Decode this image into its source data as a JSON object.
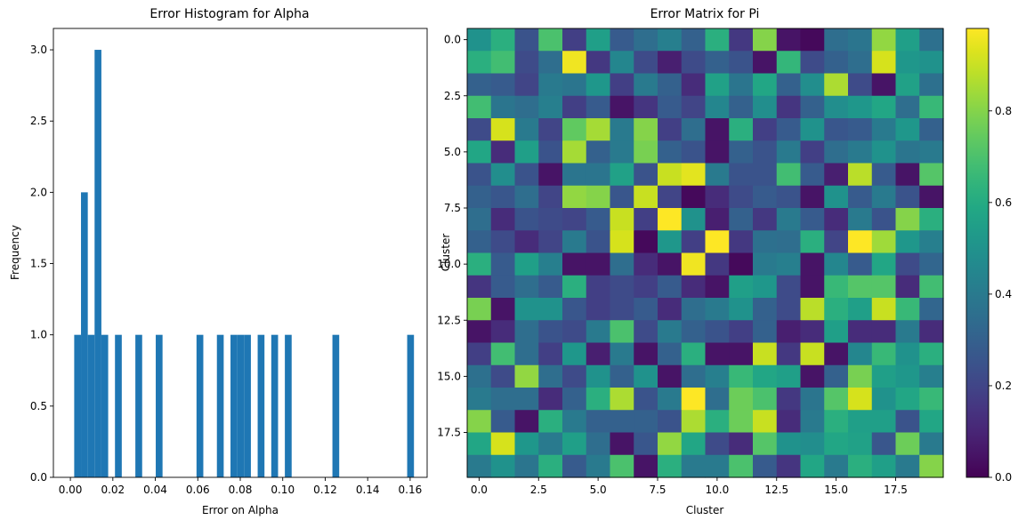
{
  "chart_data": [
    {
      "type": "bar",
      "title": "Error Histogram for Alpha",
      "xlabel": "Error on Alpha",
      "ylabel": "Frequency",
      "xlim": [
        -0.008,
        0.168
      ],
      "ylim": [
        0,
        3.15
      ],
      "xticks": [
        0.0,
        0.02,
        0.04,
        0.06,
        0.08,
        0.1,
        0.12,
        0.14,
        0.16
      ],
      "xtick_labels": [
        "0.00",
        "0.02",
        "0.04",
        "0.06",
        "0.08",
        "0.10",
        "0.12",
        "0.14",
        "0.16"
      ],
      "yticks": [
        0.0,
        0.5,
        1.0,
        1.5,
        2.0,
        2.5,
        3.0
      ],
      "ytick_labels": [
        "0.0",
        "0.5",
        "1.0",
        "1.5",
        "2.0",
        "2.5",
        "3.0"
      ],
      "bin_width": 0.0032,
      "bars": [
        {
          "x": 0.0034,
          "height": 1
        },
        {
          "x": 0.0066,
          "height": 2
        },
        {
          "x": 0.0098,
          "height": 1
        },
        {
          "x": 0.013,
          "height": 3
        },
        {
          "x": 0.0162,
          "height": 1
        },
        {
          "x": 0.0226,
          "height": 1
        },
        {
          "x": 0.0322,
          "height": 1
        },
        {
          "x": 0.0418,
          "height": 1
        },
        {
          "x": 0.061,
          "height": 1
        },
        {
          "x": 0.0706,
          "height": 1
        },
        {
          "x": 0.077,
          "height": 1
        },
        {
          "x": 0.0802,
          "height": 1
        },
        {
          "x": 0.0834,
          "height": 1
        },
        {
          "x": 0.0898,
          "height": 1
        },
        {
          "x": 0.0962,
          "height": 1
        },
        {
          "x": 0.1026,
          "height": 1
        },
        {
          "x": 0.125,
          "height": 1
        },
        {
          "x": 0.1602,
          "height": 1
        }
      ],
      "color": "#1f77b4"
    },
    {
      "type": "heatmap",
      "title": "Error Matrix for Pi",
      "xlabel": "Cluster",
      "ylabel": "Cluster",
      "colormap": "viridis",
      "colorbar_range": [
        0.0,
        0.98
      ],
      "colorbar_ticks": [
        0.0,
        0.2,
        0.4,
        0.6,
        0.8
      ],
      "colorbar_tick_labels": [
        "0.0",
        "0.2",
        "0.4",
        "0.6",
        "0.8"
      ],
      "xticks": [
        0,
        2.5,
        5,
        7.5,
        10,
        12.5,
        15,
        17.5
      ],
      "xtick_labels": [
        "0.0",
        "2.5",
        "5.0",
        "7.5",
        "10.0",
        "12.5",
        "15.0",
        "17.5"
      ],
      "yticks": [
        0,
        2.5,
        5,
        7.5,
        10,
        12.5,
        15,
        17.5
      ],
      "ytick_labels": [
        "0.0",
        "2.5",
        "5.0",
        "7.5",
        "10.0",
        "12.5",
        "15.0",
        "17.5"
      ],
      "matrix": [
        [
          0.5,
          0.62,
          0.25,
          0.7,
          0.18,
          0.55,
          0.28,
          0.35,
          0.42,
          0.3,
          0.62,
          0.16,
          0.8,
          0.05,
          0.02,
          0.35,
          0.38,
          0.82,
          0.55,
          0.36
        ],
        [
          0.62,
          0.68,
          0.22,
          0.35,
          0.96,
          0.16,
          0.45,
          0.22,
          0.08,
          0.22,
          0.3,
          0.25,
          0.05,
          0.65,
          0.22,
          0.3,
          0.35,
          0.92,
          0.52,
          0.5
        ],
        [
          0.3,
          0.28,
          0.2,
          0.4,
          0.38,
          0.52,
          0.18,
          0.4,
          0.3,
          0.12,
          0.56,
          0.38,
          0.58,
          0.3,
          0.48,
          0.86,
          0.22,
          0.05,
          0.56,
          0.36
        ],
        [
          0.68,
          0.38,
          0.35,
          0.42,
          0.18,
          0.28,
          0.05,
          0.15,
          0.28,
          0.2,
          0.45,
          0.3,
          0.48,
          0.15,
          0.3,
          0.48,
          0.52,
          0.58,
          0.35,
          0.66
        ],
        [
          0.22,
          0.92,
          0.4,
          0.2,
          0.74,
          0.85,
          0.4,
          0.8,
          0.18,
          0.35,
          0.05,
          0.62,
          0.18,
          0.28,
          0.5,
          0.26,
          0.28,
          0.4,
          0.52,
          0.3
        ],
        [
          0.58,
          0.12,
          0.55,
          0.25,
          0.85,
          0.3,
          0.4,
          0.78,
          0.3,
          0.25,
          0.05,
          0.3,
          0.25,
          0.4,
          0.18,
          0.35,
          0.4,
          0.5,
          0.38,
          0.4
        ],
        [
          0.25,
          0.48,
          0.25,
          0.05,
          0.38,
          0.38,
          0.56,
          0.25,
          0.9,
          0.94,
          0.4,
          0.25,
          0.25,
          0.68,
          0.28,
          0.08,
          0.88,
          0.28,
          0.05,
          0.72
        ],
        [
          0.3,
          0.26,
          0.35,
          0.2,
          0.82,
          0.8,
          0.26,
          0.9,
          0.2,
          0.02,
          0.12,
          0.22,
          0.28,
          0.25,
          0.05,
          0.5,
          0.28,
          0.4,
          0.25,
          0.05
        ],
        [
          0.35,
          0.12,
          0.25,
          0.22,
          0.2,
          0.28,
          0.9,
          0.18,
          0.98,
          0.5,
          0.08,
          0.3,
          0.16,
          0.4,
          0.28,
          0.12,
          0.4,
          0.25,
          0.8,
          0.62
        ],
        [
          0.3,
          0.22,
          0.12,
          0.2,
          0.4,
          0.25,
          0.92,
          0.02,
          0.52,
          0.18,
          0.98,
          0.16,
          0.36,
          0.35,
          0.62,
          0.2,
          0.98,
          0.84,
          0.52,
          0.42
        ],
        [
          0.62,
          0.28,
          0.55,
          0.42,
          0.05,
          0.05,
          0.35,
          0.12,
          0.05,
          0.96,
          0.16,
          0.02,
          0.4,
          0.42,
          0.05,
          0.45,
          0.28,
          0.58,
          0.22,
          0.32
        ],
        [
          0.15,
          0.28,
          0.35,
          0.28,
          0.62,
          0.18,
          0.22,
          0.18,
          0.28,
          0.12,
          0.05,
          0.55,
          0.52,
          0.22,
          0.05,
          0.66,
          0.72,
          0.72,
          0.12,
          0.68
        ],
        [
          0.78,
          0.05,
          0.5,
          0.5,
          0.26,
          0.18,
          0.22,
          0.28,
          0.12,
          0.35,
          0.4,
          0.5,
          0.3,
          0.22,
          0.88,
          0.62,
          0.55,
          0.9,
          0.66,
          0.32
        ],
        [
          0.05,
          0.12,
          0.35,
          0.25,
          0.22,
          0.4,
          0.7,
          0.22,
          0.4,
          0.3,
          0.25,
          0.18,
          0.3,
          0.08,
          0.12,
          0.55,
          0.12,
          0.12,
          0.4,
          0.12
        ],
        [
          0.18,
          0.68,
          0.35,
          0.18,
          0.52,
          0.08,
          0.4,
          0.05,
          0.3,
          0.62,
          0.05,
          0.05,
          0.9,
          0.16,
          0.9,
          0.05,
          0.45,
          0.66,
          0.5,
          0.62
        ],
        [
          0.36,
          0.22,
          0.82,
          0.35,
          0.22,
          0.5,
          0.3,
          0.5,
          0.05,
          0.35,
          0.42,
          0.66,
          0.58,
          0.55,
          0.05,
          0.3,
          0.78,
          0.55,
          0.52,
          0.42
        ],
        [
          0.4,
          0.35,
          0.35,
          0.12,
          0.3,
          0.62,
          0.86,
          0.25,
          0.4,
          0.98,
          0.35,
          0.76,
          0.7,
          0.16,
          0.38,
          0.72,
          0.92,
          0.5,
          0.58,
          0.66
        ],
        [
          0.8,
          0.28,
          0.05,
          0.62,
          0.4,
          0.3,
          0.3,
          0.3,
          0.25,
          0.86,
          0.62,
          0.76,
          0.9,
          0.12,
          0.4,
          0.62,
          0.55,
          0.55,
          0.25,
          0.58
        ],
        [
          0.58,
          0.92,
          0.52,
          0.4,
          0.55,
          0.35,
          0.05,
          0.26,
          0.82,
          0.58,
          0.22,
          0.12,
          0.72,
          0.5,
          0.48,
          0.58,
          0.56,
          0.26,
          0.76,
          0.4
        ],
        [
          0.4,
          0.5,
          0.38,
          0.62,
          0.28,
          0.4,
          0.7,
          0.05,
          0.62,
          0.4,
          0.4,
          0.7,
          0.28,
          0.15,
          0.58,
          0.4,
          0.62,
          0.55,
          0.4,
          0.8
        ]
      ]
    }
  ]
}
